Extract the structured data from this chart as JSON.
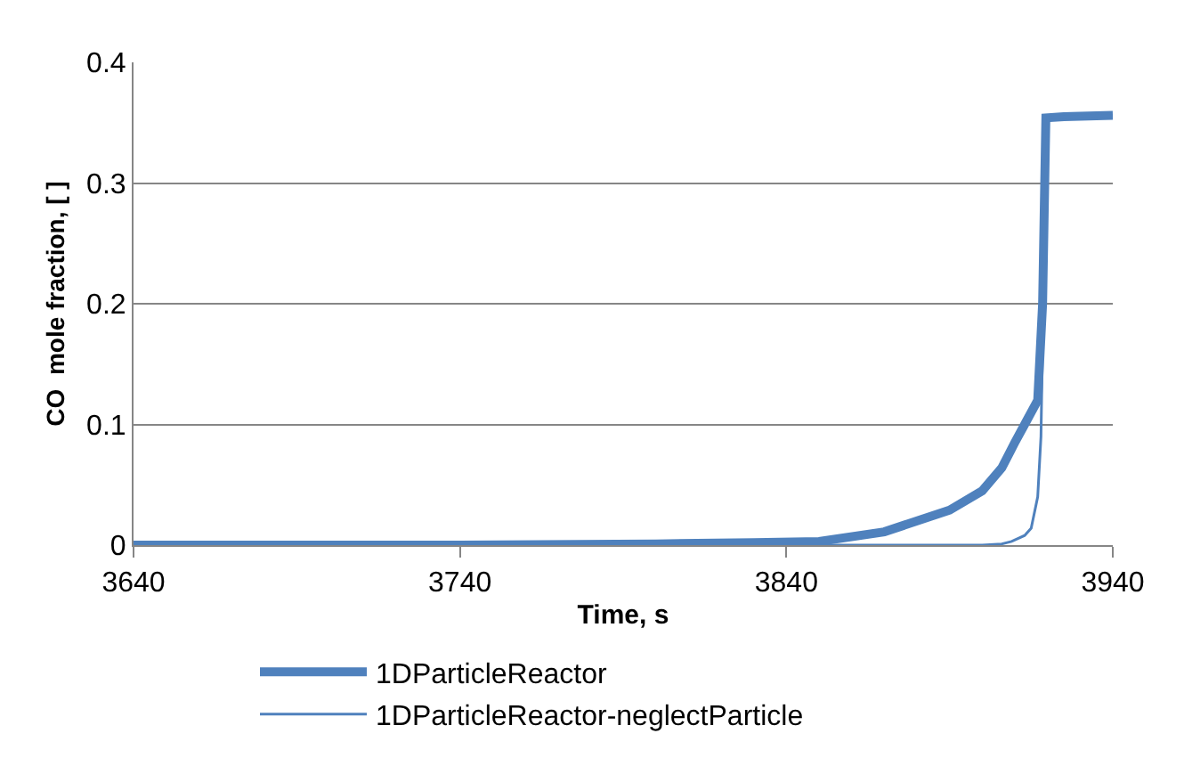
{
  "chart_data": {
    "type": "line",
    "xlabel": "Time, s",
    "ylabel": "CO  mole fraction, [ ]",
    "xlim": [
      3640,
      3940
    ],
    "xticks": [
      3640,
      3740,
      3840,
      3940
    ],
    "ylim": [
      0,
      0.4
    ],
    "yticks": [
      0,
      0.1,
      0.2,
      0.3,
      0.4
    ],
    "grid": "y",
    "legend": "bottom",
    "marker": "none",
    "line_style": "solid",
    "series": [
      {
        "name": "1DParticleReactor",
        "color": "#4f81bd",
        "x": [
          3640,
          3740,
          3800,
          3830,
          3850,
          3870,
          3890,
          3900,
          3906,
          3910,
          3913,
          3917,
          3918.5,
          3919.5,
          3925,
          3940
        ],
        "values": [
          0,
          0,
          0.001,
          0.002,
          0.003,
          0.011,
          0.029,
          0.045,
          0.064,
          0.085,
          0.1,
          0.12,
          0.2,
          0.354,
          0.355,
          0.356
        ]
      },
      {
        "name": "1DParticleReactor-neglectParticle",
        "color": "#4f81bd",
        "x": [
          3640,
          3740,
          3840,
          3900,
          3906,
          3909,
          3913,
          3915,
          3917,
          3918,
          3919,
          3920,
          3925,
          3940
        ],
        "values": [
          0,
          0,
          0,
          0,
          0.001,
          0.003,
          0.008,
          0.014,
          0.04,
          0.09,
          0.25,
          0.354,
          0.355,
          0.356
        ]
      }
    ]
  }
}
